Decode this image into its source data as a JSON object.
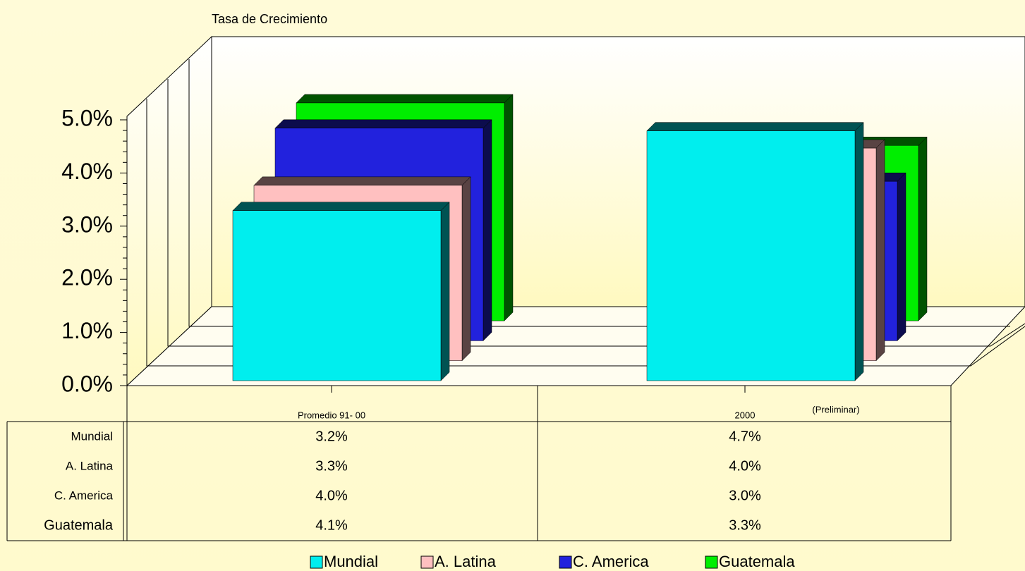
{
  "chart_data": {
    "type": "bar3d",
    "title": "Tasa de Crecimiento",
    "categories": [
      "Promedio 91- 00",
      "2000"
    ],
    "annotation": "(Preliminar)",
    "series": [
      {
        "name": "Mundial",
        "color": "#00eeee",
        "values": [
          3.2,
          4.7
        ],
        "value_labels": [
          "3.2%",
          "4.7%"
        ]
      },
      {
        "name": "A. Latina",
        "color": "#ffc0c0",
        "values": [
          3.3,
          4.0
        ],
        "value_labels": [
          "3.3%",
          "4.0%"
        ]
      },
      {
        "name": "C. America",
        "color": "#2222dd",
        "values": [
          4.0,
          3.0
        ],
        "value_labels": [
          "4.0%",
          "3.0%"
        ]
      },
      {
        "name": "Guatemala",
        "color": "#00ee00",
        "values": [
          4.1,
          3.3
        ],
        "value_labels": [
          "4.1%",
          "3.3%"
        ]
      }
    ],
    "ylim": [
      0,
      5
    ],
    "yticks": [
      {
        "value": 0,
        "label": "0.0%"
      },
      {
        "value": 1,
        "label": "1.0%"
      },
      {
        "value": 2,
        "label": "2.0%"
      },
      {
        "value": 3,
        "label": "3.0%"
      },
      {
        "value": 4,
        "label": "4.0%"
      },
      {
        "value": 5,
        "label": "5.0%"
      }
    ],
    "legend": "bottom"
  }
}
